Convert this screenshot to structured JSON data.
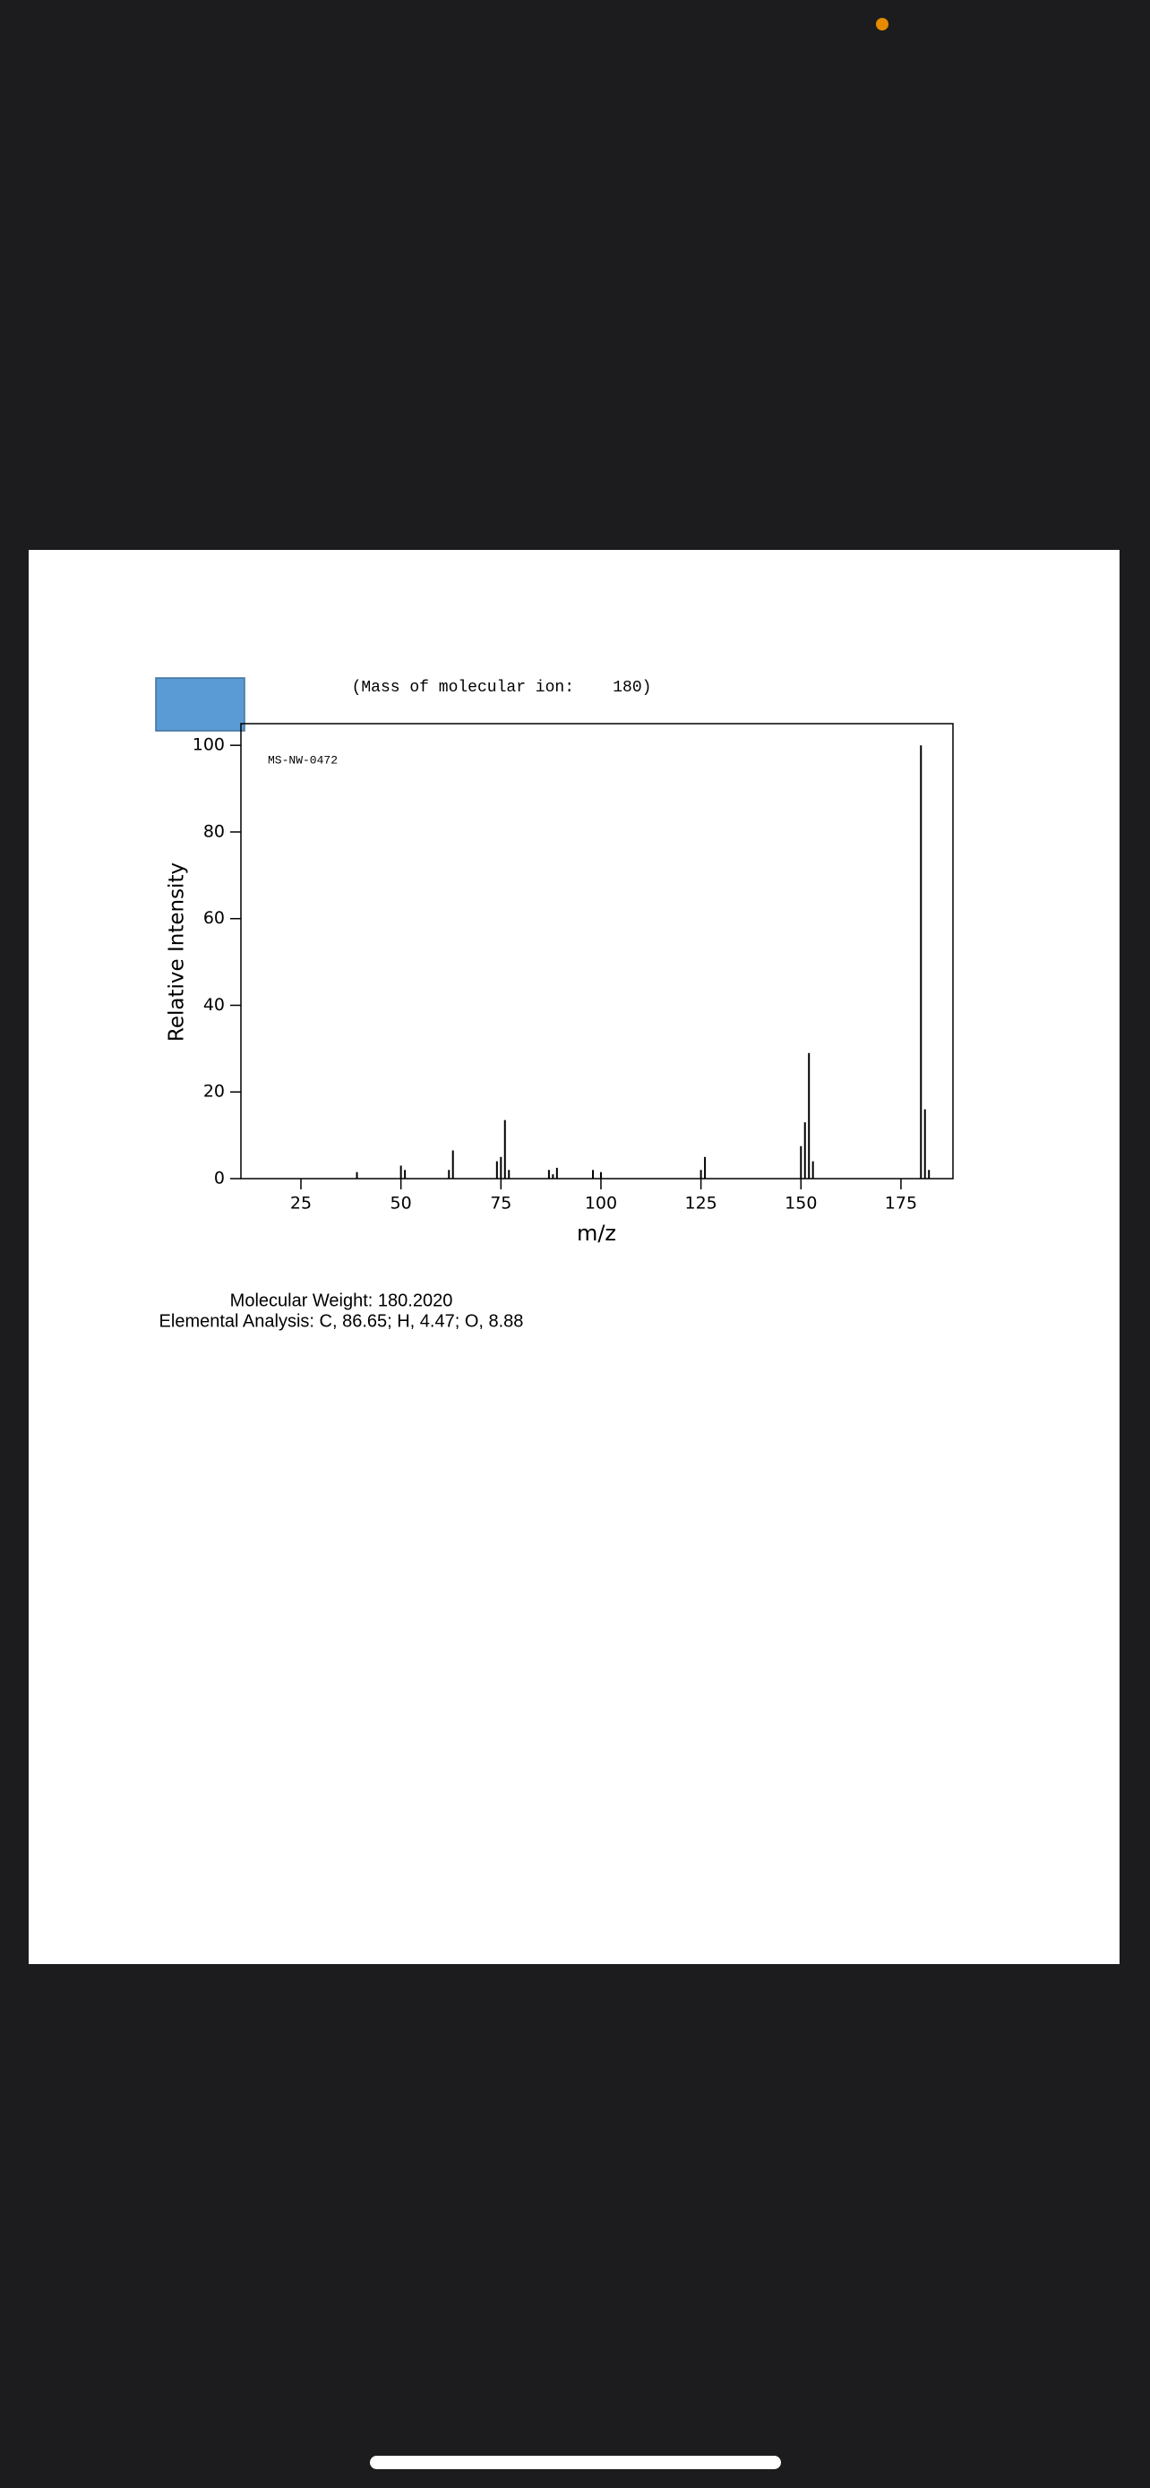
{
  "chart_data": {
    "type": "bar",
    "title": "(Mass of molecular ion:    180)",
    "annotation": "MS-NW-0472",
    "x_label": "m/z",
    "y_label": "Relative Intensity",
    "x": [
      39,
      50,
      51,
      62,
      63,
      74,
      75,
      76,
      77,
      87,
      88,
      89,
      98,
      100,
      125,
      126,
      150,
      151,
      152,
      153,
      180,
      181,
      182
    ],
    "values": [
      1.5,
      3,
      2,
      2,
      6.5,
      4,
      5,
      13.5,
      2,
      2,
      1,
      2.5,
      2,
      1.5,
      2,
      5,
      7.5,
      13,
      29,
      4,
      100,
      16,
      2
    ],
    "color": "#000000",
    "xlim": [
      10,
      188
    ],
    "ylim": [
      0,
      105
    ],
    "xticks": [
      25,
      50,
      75,
      100,
      125,
      150,
      175
    ],
    "yticks": [
      0,
      20,
      40,
      60,
      80,
      100
    ]
  },
  "footer": {
    "molecular_weight": "Molecular Weight: 180.2020",
    "elemental_analysis": "Elemental Analysis: C, 86.65; H, 4.47; O, 8.88"
  }
}
